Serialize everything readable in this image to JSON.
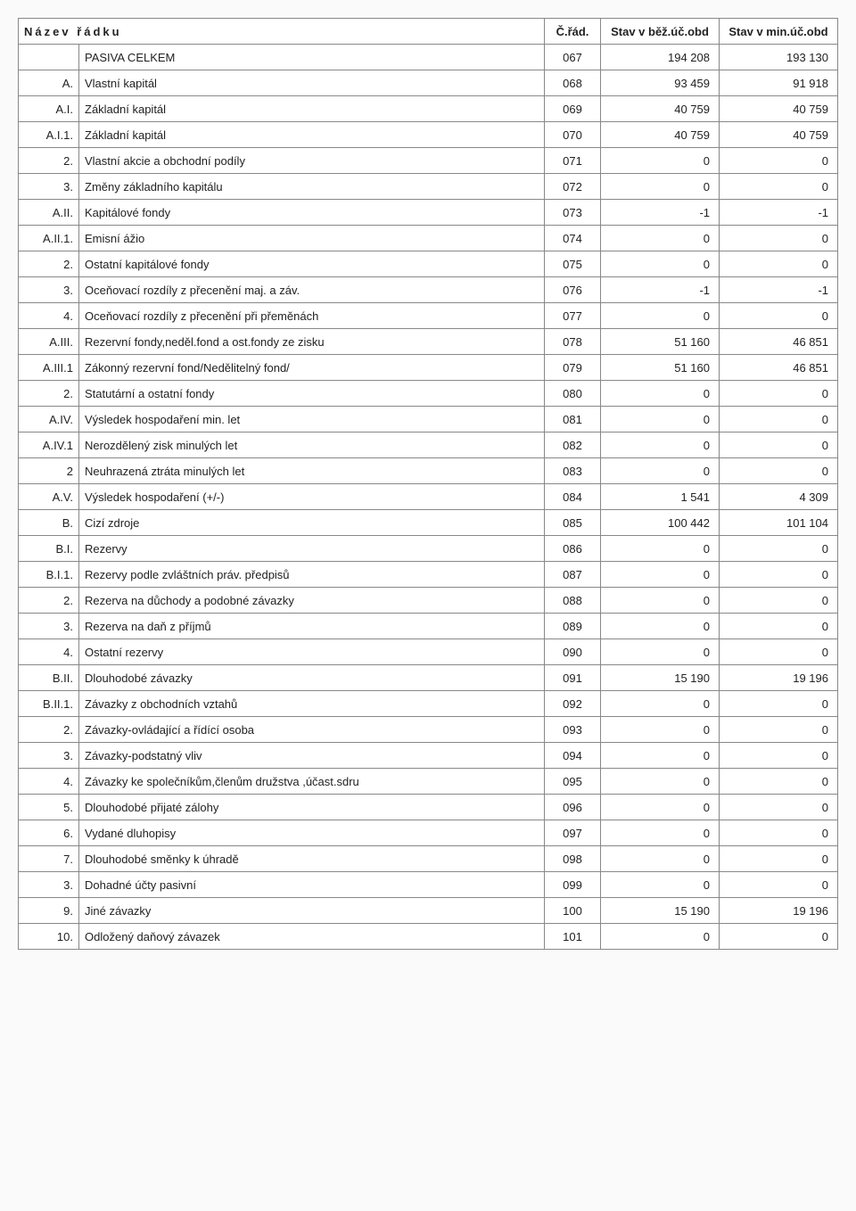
{
  "table": {
    "headers": {
      "nazev": "Název řádku",
      "crad": "Č.řád.",
      "bez": "Stav v běž.úč.obd",
      "min": "Stav v min.úč.obd"
    },
    "rows": [
      {
        "code": "",
        "label": "PASIVA CELKEM",
        "crad": "067",
        "bez": "194 208",
        "min": "193 130",
        "section": true
      },
      {
        "code": "A.",
        "label": "Vlastní kapitál",
        "crad": "068",
        "bez": "93 459",
        "min": "91 918",
        "section": true
      },
      {
        "code": "A.I.",
        "label": "Základní kapitál",
        "crad": "069",
        "bez": "40 759",
        "min": "40 759",
        "section": true
      },
      {
        "code": "A.I.1.",
        "label": "Základní kapitál",
        "crad": "070",
        "bez": "40 759",
        "min": "40 759"
      },
      {
        "code": "2.",
        "label": "Vlastní akcie a obchodní podíly",
        "crad": "071",
        "bez": "0",
        "min": "0"
      },
      {
        "code": "3.",
        "label": "Změny základního kapitálu",
        "crad": "072",
        "bez": "0",
        "min": "0"
      },
      {
        "code": "A.II.",
        "label": "Kapitálové fondy",
        "crad": "073",
        "bez": "-1",
        "min": "-1",
        "section": true
      },
      {
        "code": "A.II.1.",
        "label": "Emisní ážio",
        "crad": "074",
        "bez": "0",
        "min": "0"
      },
      {
        "code": "2.",
        "label": "Ostatní kapitálové fondy",
        "crad": "075",
        "bez": "0",
        "min": "0"
      },
      {
        "code": "3.",
        "label": "Oceňovací rozdíly z přecenění maj. a záv.",
        "crad": "076",
        "bez": "-1",
        "min": "-1"
      },
      {
        "code": "4.",
        "label": "Oceňovací rozdíly z přecenění při přeměnách",
        "crad": "077",
        "bez": "0",
        "min": "0"
      },
      {
        "code": "A.III.",
        "label": "Rezervní fondy,neděl.fond a ost.fondy ze zisku",
        "crad": "078",
        "bez": "51 160",
        "min": "46 851",
        "section": true
      },
      {
        "code": "A.III.1",
        "label": "Zákonný rezervní fond/Nedělitelný fond/",
        "crad": "079",
        "bez": "51 160",
        "min": "46 851"
      },
      {
        "code": "2.",
        "label": "Statutární a ostatní fondy",
        "crad": "080",
        "bez": "0",
        "min": "0"
      },
      {
        "code": "A.IV.",
        "label": "Výsledek hospodaření min. let",
        "crad": "081",
        "bez": "0",
        "min": "0",
        "section": true
      },
      {
        "code": "A.IV.1",
        "label": "Nerozdělený zisk minulých let",
        "crad": "082",
        "bez": "0",
        "min": "0"
      },
      {
        "code": "2",
        "label": "Neuhrazená ztráta minulých let",
        "crad": "083",
        "bez": "0",
        "min": "0"
      },
      {
        "code": "A.V.",
        "label": "Výsledek hospodaření (+/-)",
        "crad": "084",
        "bez": "1 541",
        "min": "4 309",
        "section": true
      },
      {
        "code": "B.",
        "label": "Cizí zdroje",
        "crad": "085",
        "bez": "100 442",
        "min": "101 104",
        "section": true
      },
      {
        "code": "B.I.",
        "label": "Rezervy",
        "crad": "086",
        "bez": "0",
        "min": "0",
        "section": true
      },
      {
        "code": "B.I.1.",
        "label": "Rezervy podle zvláštních práv. předpisů",
        "crad": "087",
        "bez": "0",
        "min": "0"
      },
      {
        "code": "2.",
        "label": "Rezerva na důchody a podobné závazky",
        "crad": "088",
        "bez": "0",
        "min": "0"
      },
      {
        "code": "3.",
        "label": "Rezerva na daň z příjmů",
        "crad": "089",
        "bez": "0",
        "min": "0"
      },
      {
        "code": "4.",
        "label": "Ostatní rezervy",
        "crad": "090",
        "bez": "0",
        "min": "0"
      },
      {
        "code": "B.II.",
        "label": "Dlouhodobé závazky",
        "crad": "091",
        "bez": "15 190",
        "min": "19 196",
        "section": true
      },
      {
        "code": "B.II.1.",
        "label": "Závazky z obchodních vztahů",
        "crad": "092",
        "bez": "0",
        "min": "0"
      },
      {
        "code": "2.",
        "label": "Závazky-ovládající a řídící osoba",
        "crad": "093",
        "bez": "0",
        "min": "0"
      },
      {
        "code": "3.",
        "label": "Závazky-podstatný vliv",
        "crad": "094",
        "bez": "0",
        "min": "0"
      },
      {
        "code": "4.",
        "label": "Závazky ke společníkům,členům družstva ,účast.sdru",
        "crad": "095",
        "bez": "0",
        "min": "0"
      },
      {
        "code": "5.",
        "label": "Dlouhodobé přijaté zálohy",
        "crad": "096",
        "bez": "0",
        "min": "0"
      },
      {
        "code": "6.",
        "label": "Vydané dluhopisy",
        "crad": "097",
        "bez": "0",
        "min": "0"
      },
      {
        "code": "7.",
        "label": "Dlouhodobé směnky k úhradě",
        "crad": "098",
        "bez": "0",
        "min": "0"
      },
      {
        "code": "3.",
        "label": "Dohadné účty pasivní",
        "crad": "099",
        "bez": "0",
        "min": "0"
      },
      {
        "code": "9.",
        "label": "Jiné závazky",
        "crad": "100",
        "bez": "15 190",
        "min": "19 196"
      },
      {
        "code": "10.",
        "label": "Odložený daňový závazek",
        "crad": "101",
        "bez": "0",
        "min": "0"
      }
    ]
  }
}
